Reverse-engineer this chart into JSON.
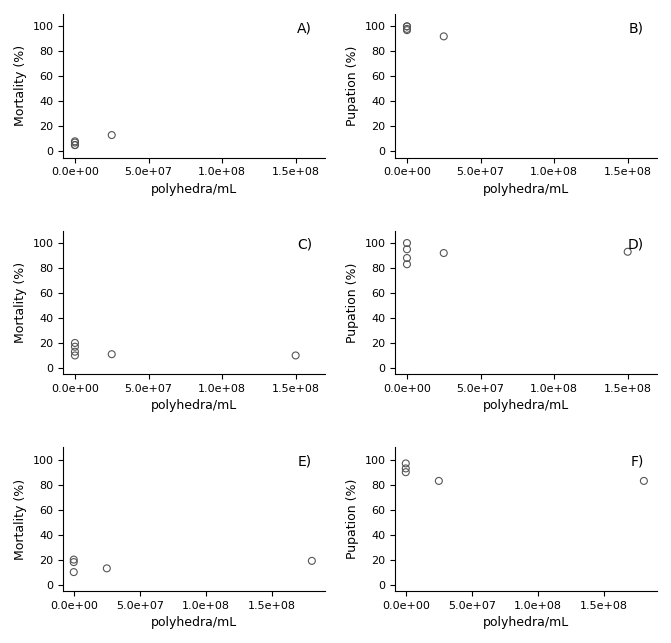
{
  "panels": [
    {
      "label": "A)",
      "ylabel": "Mortality (%)",
      "xlabel": "polyhedra/mL",
      "xlim": [
        -8000000.0,
        170000000.0
      ],
      "ylim": [
        -5,
        110
      ],
      "yticks": [
        0,
        20,
        40,
        60,
        80,
        100
      ],
      "x": [
        0,
        0,
        0,
        0,
        25000000.0
      ],
      "y": [
        5,
        5,
        7,
        8,
        13
      ],
      "label_pos": "upper right"
    },
    {
      "label": "B)",
      "ylabel": "Pupation (%)",
      "xlabel": "polyhedra/mL",
      "xlim": [
        -8000000.0,
        170000000.0
      ],
      "ylim": [
        -5,
        110
      ],
      "yticks": [
        0,
        20,
        40,
        60,
        80,
        100
      ],
      "x": [
        0,
        0,
        0,
        0,
        25000000.0
      ],
      "y": [
        97,
        98,
        100,
        100,
        92
      ],
      "label_pos": "upper right"
    },
    {
      "label": "C)",
      "ylabel": "Mortality (%)",
      "xlabel": "polyhedra/mL",
      "xlim": [
        -8000000.0,
        170000000.0
      ],
      "ylim": [
        -5,
        110
      ],
      "yticks": [
        0,
        20,
        40,
        60,
        80,
        100
      ],
      "x": [
        0,
        0,
        0,
        0,
        25000000.0,
        150000000.0
      ],
      "y": [
        10,
        13,
        17,
        20,
        11,
        10
      ],
      "label_pos": "upper right"
    },
    {
      "label": "D)",
      "ylabel": "Pupation (%)",
      "xlabel": "polyhedra/mL",
      "xlim": [
        -8000000.0,
        170000000.0
      ],
      "ylim": [
        -5,
        110
      ],
      "yticks": [
        0,
        20,
        40,
        60,
        80,
        100
      ],
      "x": [
        0,
        0,
        0,
        0,
        25000000.0,
        150000000.0
      ],
      "y": [
        83,
        88,
        95,
        100,
        92,
        93
      ],
      "label_pos": "upper right"
    },
    {
      "label": "E)",
      "ylabel": "Mortality (%)",
      "xlabel": "polyhedra/mL",
      "xlim": [
        -8000000.0,
        190000000.0
      ],
      "ylim": [
        -5,
        110
      ],
      "yticks": [
        0,
        20,
        40,
        60,
        80,
        100
      ],
      "x": [
        0,
        0,
        0,
        25000000.0,
        180000000.0
      ],
      "y": [
        10,
        18,
        20,
        13,
        19
      ],
      "label_pos": "upper right"
    },
    {
      "label": "F)",
      "ylabel": "Pupation (%)",
      "xlabel": "polyhedra/mL",
      "xlim": [
        -8000000.0,
        190000000.0
      ],
      "ylim": [
        -5,
        110
      ],
      "yticks": [
        0,
        20,
        40,
        60,
        80,
        100
      ],
      "x": [
        0,
        0,
        0,
        25000000.0,
        180000000.0
      ],
      "y": [
        90,
        93,
        97,
        83,
        83
      ],
      "label_pos": "upper right"
    }
  ],
  "marker": "o",
  "marker_size": 5,
  "marker_color": "none",
  "marker_edge_color": "#555555",
  "marker_edge_width": 0.8,
  "bg_color": "#ffffff",
  "tick_fontsize": 8,
  "label_fontsize": 9,
  "panel_label_fontsize": 10
}
